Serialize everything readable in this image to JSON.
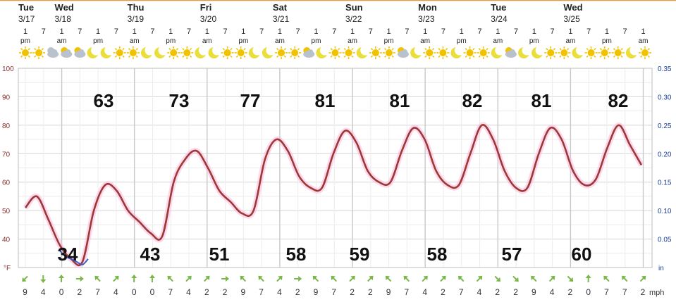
{
  "chart_data": {
    "type": "line",
    "y_unit": "°F",
    "ylim": [
      30,
      100
    ],
    "yticks": [
      100,
      90,
      80,
      70,
      60,
      50,
      40
    ],
    "right_axis": {
      "unit": "in",
      "ticks": [
        "0.35",
        "0.30",
        "0.25",
        "0.20",
        "0.15",
        "0.10",
        "0.05"
      ]
    },
    "grid": true,
    "days": [
      {
        "day": "Tue",
        "date": "3/17"
      },
      {
        "day": "Wed",
        "date": "3/18"
      },
      {
        "day": "",
        "date": ""
      },
      {
        "day": "Thu",
        "date": "3/19"
      },
      {
        "day": "Fri",
        "date": "3/20"
      },
      {
        "day": "Sat",
        "date": "3/21"
      },
      {
        "day": "Sun",
        "date": "3/22"
      },
      {
        "day": "Mon",
        "date": "3/23"
      },
      {
        "day": "Tue",
        "date": "3/24"
      },
      {
        "day": "Wed",
        "date": "3/25"
      }
    ],
    "hours": [
      {
        "h": "1",
        "p": "pm"
      },
      {
        "h": "7",
        "p": ""
      },
      {
        "h": "1",
        "p": "am"
      },
      {
        "h": "7",
        "p": ""
      },
      {
        "h": "1",
        "p": "pm"
      },
      {
        "h": "7",
        "p": ""
      },
      {
        "h": "1",
        "p": "am"
      },
      {
        "h": "7",
        "p": ""
      },
      {
        "h": "1",
        "p": "pm"
      },
      {
        "h": "7",
        "p": ""
      },
      {
        "h": "1",
        "p": "am"
      },
      {
        "h": "7",
        "p": ""
      },
      {
        "h": "1",
        "p": "pm"
      },
      {
        "h": "7",
        "p": ""
      },
      {
        "h": "1",
        "p": "am"
      },
      {
        "h": "7",
        "p": ""
      },
      {
        "h": "1",
        "p": "pm"
      },
      {
        "h": "7",
        "p": ""
      },
      {
        "h": "1",
        "p": "am"
      },
      {
        "h": "7",
        "p": ""
      },
      {
        "h": "1",
        "p": "pm"
      },
      {
        "h": "7",
        "p": ""
      },
      {
        "h": "1",
        "p": "am"
      },
      {
        "h": "7",
        "p": ""
      },
      {
        "h": "1",
        "p": "pm"
      },
      {
        "h": "7",
        "p": ""
      },
      {
        "h": "1",
        "p": "am"
      },
      {
        "h": "7",
        "p": ""
      },
      {
        "h": "1",
        "p": "pm"
      },
      {
        "h": "7",
        "p": ""
      },
      {
        "h": "1",
        "p": "am"
      },
      {
        "h": "7",
        "p": ""
      },
      {
        "h": "1",
        "p": "pm"
      },
      {
        "h": "7",
        "p": ""
      },
      {
        "h": "1",
        "p": "am"
      }
    ],
    "icons": [
      "sun",
      "sun",
      "cloudy-icon",
      "partly-cloudy-icon",
      "partly-cloudy-icon",
      "moon",
      "moon",
      "sun",
      "sun",
      "moon",
      "moon",
      "sun",
      "sun",
      "moon",
      "moon",
      "sun",
      "sun",
      "moon",
      "moon",
      "sun",
      "sun",
      "partly-cloudy-icon",
      "moon",
      "sun",
      "sun",
      "moon",
      "sun",
      "sun",
      "partly-cloudy-icon",
      "moon",
      "sun",
      "sun",
      "moon",
      "sun",
      "sun",
      "moon",
      "partly-cloudy-icon",
      "moon",
      "moon",
      "sun",
      "sun",
      "moon",
      "sun",
      "sun",
      "sun",
      "moon",
      "sun"
    ],
    "temperature": [
      51,
      55,
      47,
      38,
      33,
      32,
      50,
      59,
      57,
      50,
      46,
      42,
      41,
      60,
      68,
      71,
      65,
      57,
      53,
      49,
      50,
      68,
      75,
      71,
      62,
      58,
      58,
      70,
      78,
      74,
      64,
      60,
      60,
      71,
      79,
      75,
      64,
      59,
      59,
      70,
      80,
      75,
      64,
      58,
      58,
      70,
      79,
      75,
      64,
      59,
      61,
      72,
      80,
      73,
      66
    ],
    "dewpoint_segment": [
      36,
      34,
      33,
      32,
      31,
      33
    ],
    "highs": [
      63,
      73,
      77,
      81,
      81,
      82,
      81,
      82
    ],
    "lows": [
      34,
      43,
      51,
      58,
      59,
      58,
      57,
      60
    ],
    "wind_unit": "mph",
    "wind_speeds": [
      9,
      4,
      0,
      2,
      7,
      4,
      0,
      0,
      7,
      4,
      2,
      2,
      9,
      7,
      4,
      2,
      9,
      7,
      2,
      2,
      9,
      7,
      4,
      2,
      7,
      4,
      2,
      2,
      9,
      4,
      2,
      0,
      7,
      7,
      2
    ],
    "wind_dirs": [
      225,
      180,
      0,
      90,
      315,
      45,
      0,
      0,
      315,
      45,
      45,
      90,
      315,
      315,
      45,
      90,
      315,
      315,
      45,
      45,
      315,
      315,
      45,
      45,
      315,
      45,
      135,
      135,
      315,
      45,
      135,
      0,
      315,
      315,
      45
    ]
  },
  "colors": {
    "temp_line": "#9b3a34",
    "temp_glow": "#ffb8e0",
    "dew_line": "#3a5fc8",
    "sun": "#f2c200",
    "moon": "#eadf3a",
    "cloud": "#b9c2cc",
    "wind_arrow": "#7ab648",
    "left_axis": "#8b2e2e",
    "right_axis": "#1a3f9a",
    "header_rule": "#e09a4a"
  }
}
